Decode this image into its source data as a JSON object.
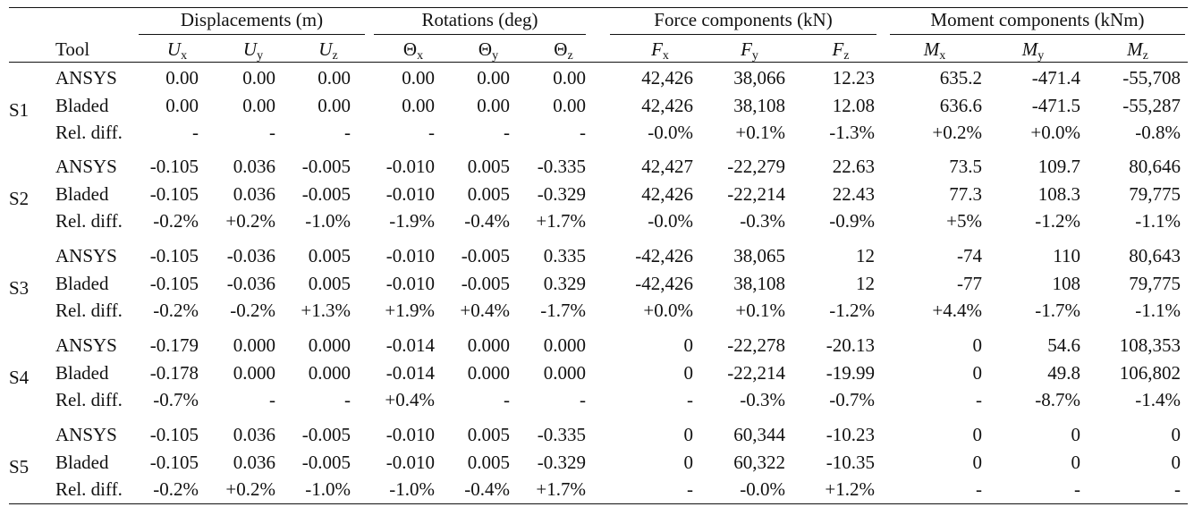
{
  "header": {
    "tool": "Tool",
    "groups": [
      {
        "title": "Displacements (m)",
        "columns": [
          {
            "symbol": "U",
            "sub": "x"
          },
          {
            "symbol": "U",
            "sub": "y"
          },
          {
            "symbol": "U",
            "sub": "z"
          }
        ]
      },
      {
        "title": "Rotations (deg)",
        "columns": [
          {
            "symbol": "Θ",
            "sub": "x"
          },
          {
            "symbol": "Θ",
            "sub": "y"
          },
          {
            "symbol": "Θ",
            "sub": "z"
          }
        ]
      },
      {
        "title": "Force components (kN)",
        "columns": [
          {
            "symbol": "F",
            "sub": "x"
          },
          {
            "symbol": "F",
            "sub": "y"
          },
          {
            "symbol": "F",
            "sub": "z"
          }
        ]
      },
      {
        "title": "Moment components (kNm)",
        "columns": [
          {
            "symbol": "M",
            "sub": "x"
          },
          {
            "symbol": "M",
            "sub": "y"
          },
          {
            "symbol": "M",
            "sub": "z"
          }
        ]
      }
    ]
  },
  "table": {
    "groups": [
      {
        "label": "S1",
        "rows": [
          {
            "tool": "ANSYS",
            "values": [
              "0.00",
              "0.00",
              "0.00",
              "0.00",
              "0.00",
              "0.00",
              "42,426",
              "38,066",
              "12.23",
              "635.2",
              "-471.4",
              "-55,708"
            ]
          },
          {
            "tool": "Bladed",
            "values": [
              "0.00",
              "0.00",
              "0.00",
              "0.00",
              "0.00",
              "0.00",
              "42,426",
              "38,108",
              "12.08",
              "636.6",
              "-471.5",
              "-55,287"
            ]
          },
          {
            "tool": "Rel. diff.",
            "values": [
              "-",
              "-",
              "-",
              "-",
              "-",
              "-",
              "-0.0%",
              "+0.1%",
              "-1.3%",
              "+0.2%",
              "+0.0%",
              "-0.8%"
            ]
          }
        ]
      },
      {
        "label": "S2",
        "rows": [
          {
            "tool": "ANSYS",
            "values": [
              "-0.105",
              "0.036",
              "-0.005",
              "-0.010",
              "0.005",
              "-0.335",
              "42,427",
              "-22,279",
              "22.63",
              "73.5",
              "109.7",
              "80,646"
            ]
          },
          {
            "tool": "Bladed",
            "values": [
              "-0.105",
              "0.036",
              "-0.005",
              "-0.010",
              "0.005",
              "-0.329",
              "42,426",
              "-22,214",
              "22.43",
              "77.3",
              "108.3",
              "79,775"
            ]
          },
          {
            "tool": "Rel. diff.",
            "values": [
              "-0.2%",
              "+0.2%",
              "-1.0%",
              "-1.9%",
              "-0.4%",
              "+1.7%",
              "-0.0%",
              "-0.3%",
              "-0.9%",
              "+5%",
              "-1.2%",
              "-1.1%"
            ]
          }
        ]
      },
      {
        "label": "S3",
        "rows": [
          {
            "tool": "ANSYS",
            "values": [
              "-0.105",
              "-0.036",
              "0.005",
              "-0.010",
              "-0.005",
              "0.335",
              "-42,426",
              "38,065",
              "12",
              "-74",
              "110",
              "80,643"
            ]
          },
          {
            "tool": "Bladed",
            "values": [
              "-0.105",
              "-0.036",
              "0.005",
              "-0.010",
              "-0.005",
              "0.329",
              "-42,426",
              "38,108",
              "12",
              "-77",
              "108",
              "79,775"
            ]
          },
          {
            "tool": "Rel. diff.",
            "values": [
              "-0.2%",
              "-0.2%",
              "+1.3%",
              "+1.9%",
              "+0.4%",
              "-1.7%",
              "+0.0%",
              "+0.1%",
              "-1.2%",
              "+4.4%",
              "-1.7%",
              "-1.1%"
            ]
          }
        ]
      },
      {
        "label": "S4",
        "rows": [
          {
            "tool": "ANSYS",
            "values": [
              "-0.179",
              "0.000",
              "0.000",
              "-0.014",
              "0.000",
              "0.000",
              "0",
              "-22,278",
              "-20.13",
              "0",
              "54.6",
              "108,353"
            ]
          },
          {
            "tool": "Bladed",
            "values": [
              "-0.178",
              "0.000",
              "0.000",
              "-0.014",
              "0.000",
              "0.000",
              "0",
              "-22,214",
              "-19.99",
              "0",
              "49.8",
              "106,802"
            ]
          },
          {
            "tool": "Rel. diff.",
            "values": [
              "-0.7%",
              "-",
              "-",
              "+0.4%",
              "-",
              "-",
              "-",
              "-0.3%",
              "-0.7%",
              "-",
              "-8.7%",
              "-1.4%"
            ]
          }
        ]
      },
      {
        "label": "S5",
        "rows": [
          {
            "tool": "ANSYS",
            "values": [
              "-0.105",
              "0.036",
              "-0.005",
              "-0.010",
              "0.005",
              "-0.335",
              "0",
              "60,344",
              "-10.23",
              "0",
              "0",
              "0"
            ]
          },
          {
            "tool": "Bladed",
            "values": [
              "-0.105",
              "0.036",
              "-0.005",
              "-0.010",
              "0.005",
              "-0.329",
              "0",
              "60,322",
              "-10.35",
              "0",
              "0",
              "0"
            ]
          },
          {
            "tool": "Rel. diff.",
            "values": [
              "-0.2%",
              "+0.2%",
              "-1.0%",
              "-1.0%",
              "-0.4%",
              "+1.7%",
              "-",
              "-0.0%",
              "+1.2%",
              "-",
              "-",
              "-"
            ]
          }
        ]
      }
    ]
  }
}
